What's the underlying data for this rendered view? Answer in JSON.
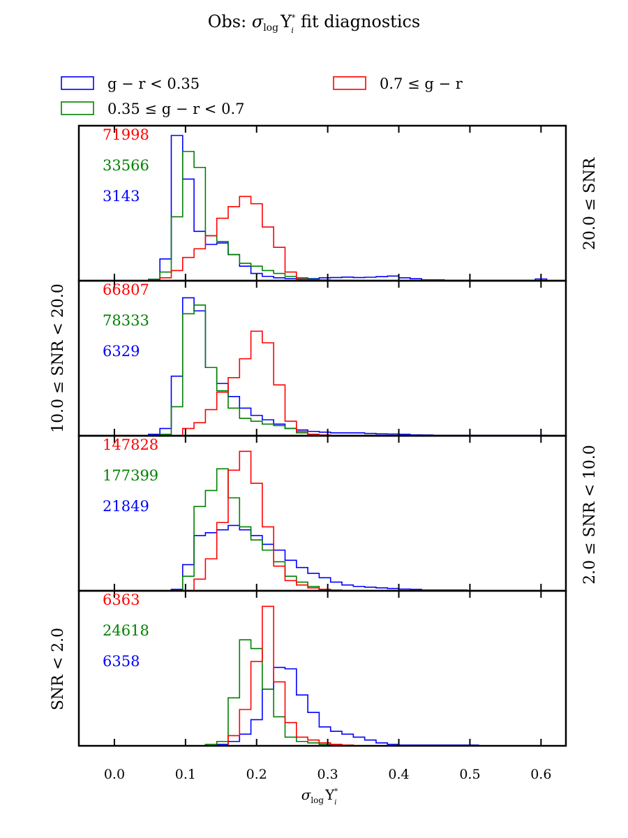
{
  "chart_data": {
    "type": "histogram",
    "title": "Obs: σ_log Υ*_i fit diagnostics",
    "title_parts": {
      "prefix": "Obs: ",
      "sigma": "σ",
      "sub_log": "log",
      "upsilon": "Υ",
      "sup": "*",
      "sub_i": "i",
      "suffix": "fit diagnostics"
    },
    "xlabel": {
      "sigma": "σ",
      "sub_log": "log",
      "upsilon": "Υ",
      "sup": "*",
      "sub_i": "i"
    },
    "xlim": [
      -0.05,
      0.635
    ],
    "xticks": [
      0.0,
      0.1,
      0.2,
      0.3,
      0.4,
      0.5,
      0.6
    ],
    "xtick_labels": [
      "0.0",
      "0.1",
      "0.2",
      "0.3",
      "0.4",
      "0.5",
      "0.6"
    ],
    "bin_edges": [
      0.0,
      0.016,
      0.032,
      0.048,
      0.064,
      0.08,
      0.096,
      0.112,
      0.128,
      0.144,
      0.16,
      0.176,
      0.192,
      0.208,
      0.224,
      0.24,
      0.256,
      0.272,
      0.288,
      0.304,
      0.32,
      0.336,
      0.352,
      0.368,
      0.384,
      0.4,
      0.416,
      0.432,
      0.448,
      0.464,
      0.48,
      0.496,
      0.512,
      0.528,
      0.544,
      0.56,
      0.576,
      0.592,
      0.608
    ],
    "legend": [
      {
        "label": "g − r < 0.35",
        "color": "#0000ff"
      },
      {
        "label": "0.35 ≤ g − r < 0.7",
        "color": "#008000"
      },
      {
        "label": "0.7 ≤ g − r",
        "color": "#ff0000"
      }
    ],
    "panels": [
      {
        "label_right": "20.0 ≤ SNR",
        "label_left": "",
        "counts": {
          "red": "71998",
          "green": "33566",
          "blue": "3143"
        },
        "ymax": 100,
        "series": {
          "blue": [
            0,
            0,
            0,
            1,
            15,
            100,
            70,
            34,
            25,
            26,
            18,
            10,
            5,
            3,
            2,
            1.5,
            1.2,
            1.4,
            2,
            2.2,
            2.5,
            2.2,
            2.4,
            2.8,
            3.2,
            2,
            1.4,
            0.6,
            0.6,
            0.3,
            0.3,
            0.3,
            0.3,
            0.3,
            0.3,
            0.3,
            0.3,
            1.2
          ],
          "green": [
            0,
            0,
            0,
            1,
            6,
            44,
            89,
            78,
            31,
            27,
            18,
            12,
            10,
            7,
            5,
            3,
            2,
            1,
            0.5,
            0.3,
            0.2,
            0,
            0,
            0,
            0,
            0,
            0,
            0,
            0,
            0,
            0,
            0,
            0,
            0,
            0,
            0,
            0,
            0
          ],
          "red": [
            0,
            0,
            0,
            0,
            2,
            7,
            16,
            22,
            31,
            43,
            51,
            58,
            53,
            37,
            23,
            6,
            1,
            0.5,
            0.3,
            0.2,
            0,
            0,
            0,
            0,
            0,
            0,
            0,
            0,
            0,
            0,
            0,
            0,
            0,
            0,
            0,
            0,
            0,
            0
          ]
        }
      },
      {
        "label_right": "",
        "label_left": "10.0 ≤ SNR < 20.0",
        "counts": {
          "red": "66807",
          "green": "78333",
          "blue": "6329"
        },
        "ymax": 100,
        "series": {
          "blue": [
            0,
            0,
            0,
            1,
            5,
            41,
            95,
            86,
            47,
            36,
            27,
            19,
            14,
            11,
            8,
            5,
            4,
            3,
            2.5,
            2,
            2,
            2,
            1.6,
            1.3,
            1.2,
            1,
            0.6,
            0.5,
            0.3,
            0.3,
            0.3,
            0.3,
            0.3,
            0.3,
            0.3,
            0.3,
            0.3,
            0.3
          ],
          "green": [
            0,
            0,
            0,
            0,
            1,
            20,
            84,
            90,
            47,
            31,
            19,
            12,
            10,
            8,
            7,
            5,
            2,
            1,
            0,
            0,
            0,
            0,
            0,
            0,
            0,
            0,
            0,
            0,
            0,
            0,
            0,
            0,
            0,
            0,
            0,
            0,
            0,
            0
          ],
          "red": [
            0,
            0,
            0,
            0,
            0,
            0,
            5,
            9,
            18,
            30,
            40,
            53,
            72,
            64,
            35,
            10,
            3,
            1,
            0.5,
            0,
            0,
            0,
            0,
            0,
            0,
            0,
            0,
            0,
            0,
            0,
            0,
            0,
            0,
            0,
            0,
            0,
            0,
            0
          ]
        }
      },
      {
        "label_right": "2.0 ≤ SNR < 10.0",
        "label_left": "",
        "counts": {
          "red": "147828",
          "green": "177399",
          "blue": "21849"
        },
        "ymax": 100,
        "series": {
          "blue": [
            0,
            0,
            0,
            0,
            0,
            1,
            18,
            38,
            40,
            42,
            45,
            42,
            38,
            32,
            28,
            21,
            16,
            12,
            9,
            6,
            4,
            3,
            2.5,
            2,
            1.6,
            1.2,
            1,
            0.5,
            0.5,
            0.5,
            0.5,
            0,
            0,
            0,
            0,
            0,
            0,
            0
          ],
          "green": [
            0,
            0,
            0,
            0,
            0,
            0,
            10,
            58,
            69,
            84,
            64,
            44,
            35,
            28,
            20,
            10,
            6,
            3,
            1,
            0.5,
            0,
            0,
            0,
            0,
            0,
            0,
            0,
            0,
            0,
            0,
            0,
            0,
            0,
            0,
            0,
            0,
            0,
            0
          ],
          "red": [
            0,
            0,
            0,
            0,
            0,
            0,
            0,
            8,
            22,
            47,
            83,
            96,
            74,
            44,
            17,
            7,
            4,
            2,
            1,
            0,
            0,
            0,
            0,
            0,
            0,
            0,
            0,
            0,
            0,
            0,
            0,
            0,
            0,
            0,
            0,
            0,
            0,
            0
          ]
        }
      },
      {
        "label_right": "",
        "label_left": "SNR < 2.0",
        "counts": {
          "red": "6363",
          "green": "24618",
          "blue": "6358"
        },
        "ymax": 100,
        "series": {
          "blue": [
            0,
            0,
            0,
            0,
            0,
            0,
            0,
            0,
            0,
            1,
            3,
            8,
            18,
            39,
            54,
            53,
            35,
            23,
            13,
            10,
            8,
            6,
            4,
            2,
            1,
            0.5,
            0.5,
            0.5,
            0.5,
            0.5,
            0.5,
            0.5,
            0,
            0,
            0,
            0,
            0,
            0
          ],
          "green": [
            0,
            0,
            0,
            0,
            0,
            0,
            0,
            0,
            1,
            3,
            33,
            73,
            67,
            39,
            20,
            6,
            3,
            2,
            1,
            0.5,
            0,
            0,
            0,
            0,
            0,
            0,
            0,
            0,
            0,
            0,
            0,
            0,
            0,
            0,
            0,
            0,
            0,
            0
          ],
          "red": [
            0,
            0,
            0,
            0,
            0,
            0,
            0,
            0,
            0,
            0,
            7,
            25,
            58,
            96,
            44,
            16,
            6,
            4,
            2,
            1,
            0.5,
            0,
            0,
            0,
            0,
            0,
            0,
            0,
            0,
            0,
            0,
            0,
            0,
            0,
            0,
            0,
            0,
            0
          ]
        }
      }
    ]
  }
}
